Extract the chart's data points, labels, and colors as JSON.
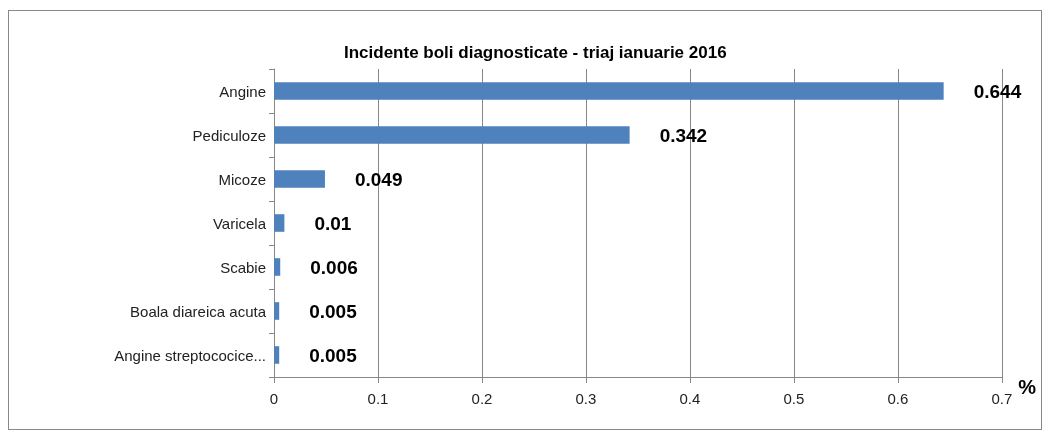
{
  "chart_data": {
    "type": "bar",
    "orientation": "horizontal",
    "title": "Incidente boli diagnosticate - triaj ianuarie 2016",
    "xlabel": "%",
    "categories": [
      "Angine",
      "Pediculoze",
      "Micoze",
      "Varicela",
      "Scabie",
      "Boala diareica acuta",
      "Angine streptococice..."
    ],
    "values": [
      0.644,
      0.342,
      0.049,
      0.01,
      0.006,
      0.005,
      0.005
    ],
    "color": "#4f81bd",
    "xlim": [
      0,
      0.7
    ],
    "xticks": [
      0,
      0.1,
      0.2,
      0.3,
      0.4,
      0.5,
      0.6,
      0.7
    ],
    "grid": "x",
    "data_labels": true
  }
}
